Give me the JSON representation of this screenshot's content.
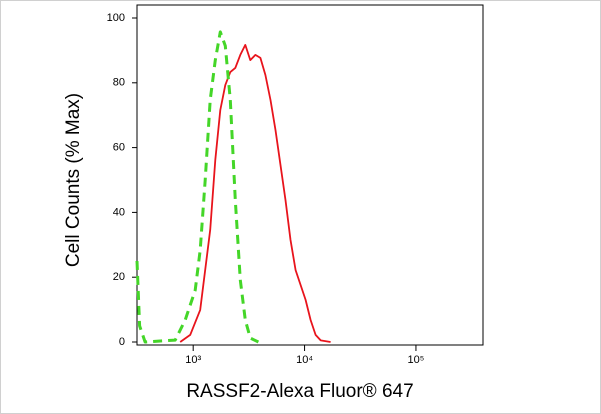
{
  "chart_data": {
    "type": "line",
    "xlabel": "RASSF2-Alexa Fluor® 647",
    "ylabel": "Cell Counts (% Max)",
    "xscale": "log",
    "xlim": [
      313,
      400000
    ],
    "ylim": [
      0,
      100
    ],
    "xticks": [
      {
        "value": 1000,
        "label": "10³"
      },
      {
        "value": 10000,
        "label": "10⁴"
      },
      {
        "value": 100000,
        "label": "10⁵"
      }
    ],
    "yticks": [
      0,
      20,
      40,
      60,
      80,
      100
    ],
    "series": [
      {
        "color": "#e8141c",
        "dash": false,
        "x": [
          764,
          940,
          1156,
          1422,
          1578,
          1750,
          1941,
          2153,
          2388,
          2649,
          2939,
          3260,
          3617,
          4014,
          4453,
          4940,
          5480,
          6080,
          6745,
          7482,
          8300,
          9208,
          10215,
          11332,
          12572,
          13947,
          17140
        ],
        "y": [
          0,
          2.2,
          9.9,
          34.6,
          56.2,
          71.6,
          79.3,
          83.3,
          84.6,
          88.6,
          91.7,
          87,
          88.6,
          87.7,
          82.4,
          74.7,
          65.4,
          54.6,
          43.8,
          31.5,
          22.2,
          17.6,
          13,
          6.8,
          2.2,
          0.5,
          0
        ]
      },
      {
        "color": "#44d628",
        "dash": true,
        "x": [
          313,
          330,
          370,
          689,
          847,
          1042,
          1156,
          1282,
          1422,
          1578,
          1750,
          1941,
          2153,
          2388,
          2649,
          2939,
          3260,
          3854
        ],
        "y": [
          25,
          5,
          0,
          0.6,
          6.8,
          16,
          28.4,
          50,
          74.7,
          87,
          95.7,
          91.4,
          74.7,
          43.8,
          19.1,
          6.8,
          1.2,
          0
        ]
      }
    ]
  }
}
